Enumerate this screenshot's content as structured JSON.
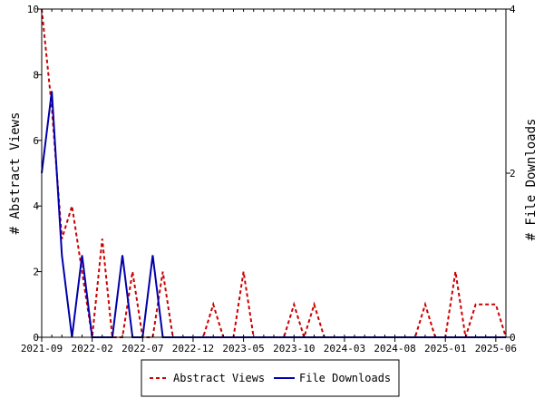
{
  "chart_data": {
    "type": "line",
    "xlabel": "",
    "ylabel_left": "# Abstract Views",
    "ylabel_right": "# File Downloads",
    "ylim_left": [
      0,
      10
    ],
    "ylim_right": [
      0,
      4
    ],
    "yticks_left": [
      "0",
      "2",
      "4",
      "6",
      "8",
      "10"
    ],
    "yticks_right": [
      "0",
      "2",
      "4"
    ],
    "x_tick_labels": [
      "2021-09",
      "2022-02",
      "2022-07",
      "2022-12",
      "2023-05",
      "2023-10",
      "2024-03",
      "2024-08",
      "2025-01",
      "2025-06"
    ],
    "x_month_count": 47,
    "legend_position": "bottom-center",
    "series": [
      {
        "name": "Abstract Views",
        "axis": "left",
        "color": "#cc0000",
        "dash": true,
        "values": [
          10,
          7,
          3,
          4,
          2,
          0,
          3,
          0,
          0,
          2,
          0,
          0,
          2,
          0,
          0,
          0,
          0,
          1,
          0,
          0,
          2,
          0,
          0,
          0,
          0,
          1,
          0,
          1,
          0,
          0,
          0,
          0,
          0,
          0,
          0,
          0,
          0,
          0,
          1,
          0,
          0,
          2,
          0,
          1,
          1,
          1,
          0
        ]
      },
      {
        "name": "File Downloads",
        "axis": "right",
        "color": "#0000aa",
        "dash": false,
        "values": [
          2,
          3,
          1,
          0,
          1,
          0,
          0,
          0,
          1,
          0,
          0,
          1,
          0,
          0,
          0,
          0,
          0,
          0,
          0,
          0,
          0,
          0,
          0,
          0,
          0,
          0,
          0,
          0,
          0,
          0,
          0,
          0,
          0,
          0,
          0,
          0,
          0,
          0,
          0,
          0,
          0,
          0,
          0,
          0,
          0,
          0,
          0
        ]
      }
    ]
  }
}
